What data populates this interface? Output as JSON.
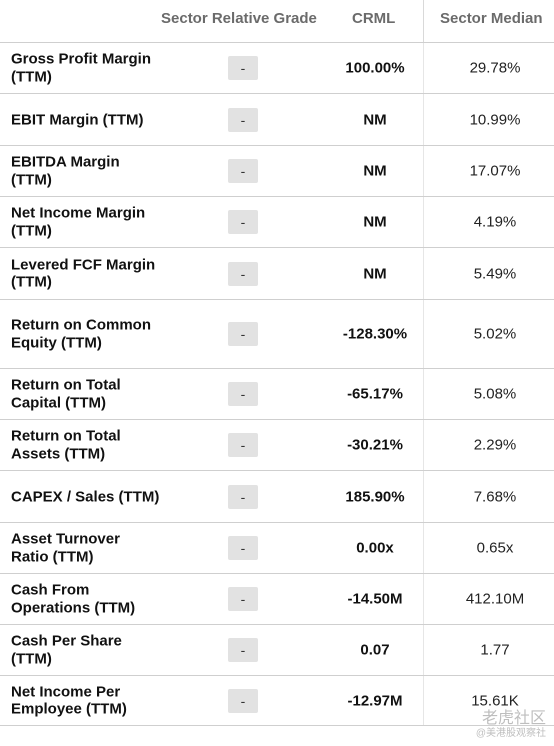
{
  "header": {
    "grade": "Sector Relative Grade",
    "crml": "CRML",
    "median": "Sector Median"
  },
  "rows": [
    {
      "metric": "Gross Profit Margin (TTM)",
      "grade": "-",
      "crml": "100.00%",
      "median": "29.78%"
    },
    {
      "metric": "EBIT Margin (TTM)",
      "grade": "-",
      "crml": "NM",
      "median": "10.99%"
    },
    {
      "metric": "EBITDA Margin (TTM)",
      "grade": "-",
      "crml": "NM",
      "median": "17.07%"
    },
    {
      "metric": "Net Income Margin (TTM)",
      "grade": "-",
      "crml": "NM",
      "median": "4.19%"
    },
    {
      "metric": "Levered FCF Margin (TTM)",
      "grade": "-",
      "crml": "NM",
      "median": "5.49%"
    },
    {
      "metric": "Return on Common Equity (TTM)",
      "grade": "-",
      "crml": "-128.30%",
      "median": "5.02%"
    },
    {
      "metric": "Return on Total Capital (TTM)",
      "grade": "-",
      "crml": "-65.17%",
      "median": "5.08%"
    },
    {
      "metric": "Return on Total Assets (TTM)",
      "grade": "-",
      "crml": "-30.21%",
      "median": "2.29%"
    },
    {
      "metric": "CAPEX / Sales (TTM)",
      "grade": "-",
      "crml": "185.90%",
      "median": "7.68%"
    },
    {
      "metric": "Asset Turnover Ratio (TTM)",
      "grade": "-",
      "crml": "0.00x",
      "median": "0.65x"
    },
    {
      "metric": "Cash From Operations (TTM)",
      "grade": "-",
      "crml": "-14.50M",
      "median": "412.10M"
    },
    {
      "metric": "Cash Per Share (TTM)",
      "grade": "-",
      "crml": "0.07",
      "median": "1.77"
    },
    {
      "metric": "Net Income Per Employee (TTM)",
      "grade": "-",
      "crml": "-12.97M",
      "median": "15.61K"
    }
  ],
  "watermark": {
    "main": "老虎社区",
    "sub": "@美港股观察社"
  }
}
